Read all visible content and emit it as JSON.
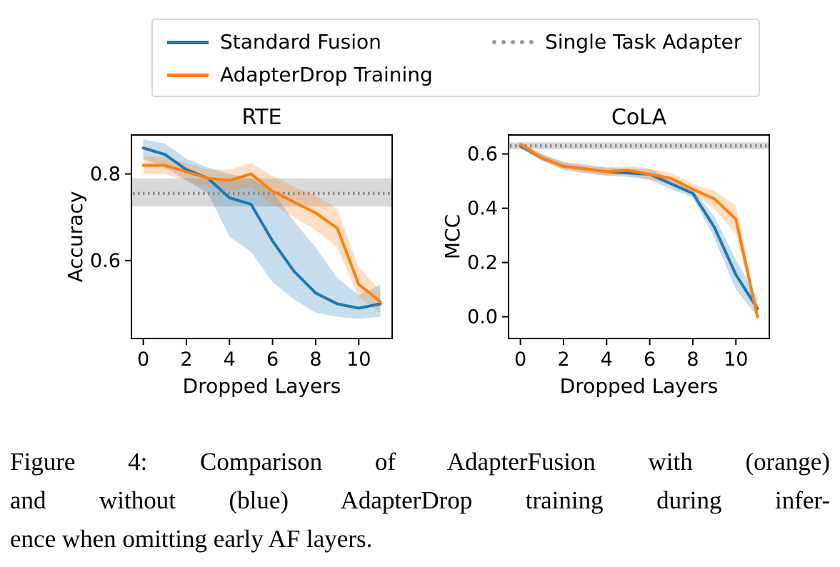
{
  "figure": {
    "legend": {
      "items": [
        {
          "label": "Standard Fusion",
          "color": "#1f77b4",
          "style": "solid"
        },
        {
          "label": "AdapterDrop Training",
          "color": "#ff7f0e",
          "style": "solid"
        },
        {
          "label": "Single Task Adapter",
          "color": "#999999",
          "style": "dotted"
        }
      ]
    },
    "caption": {
      "lines": [
        "Figure 4: Comparison of AdapterFusion with (orange)",
        "and without (blue) AdapterDrop training during infer-",
        "ence when omitting early AF layers."
      ]
    }
  },
  "chart_data": [
    {
      "type": "line",
      "title": "RTE",
      "xlabel": "Dropped Layers",
      "ylabel": "Accuracy",
      "x": [
        0,
        1,
        2,
        3,
        4,
        5,
        6,
        7,
        8,
        9,
        10,
        11
      ],
      "xlim": [
        -0.55,
        11.55
      ],
      "ylim": [
        0.42,
        0.89
      ],
      "xticks": [
        0,
        2,
        4,
        6,
        8,
        10
      ],
      "yticks": [
        0.6,
        0.8
      ],
      "ytick_labels": [
        "0.6",
        "0.8"
      ],
      "grid": false,
      "baseline": {
        "name": "Single Task Adapter",
        "value": 0.755,
        "band": [
          0.725,
          0.79
        ],
        "color": "#8a8a8a",
        "band_color": "#aaaaaa"
      },
      "series": [
        {
          "name": "Standard Fusion",
          "color": "#1f77b4",
          "values": [
            0.86,
            0.845,
            0.81,
            0.79,
            0.745,
            0.73,
            0.645,
            0.575,
            0.525,
            0.5,
            0.49,
            0.5
          ],
          "lower": [
            0.835,
            0.815,
            0.785,
            0.755,
            0.655,
            0.62,
            0.55,
            0.51,
            0.48,
            0.47,
            0.465,
            0.47
          ],
          "upper": [
            0.88,
            0.87,
            0.835,
            0.815,
            0.8,
            0.79,
            0.76,
            0.69,
            0.63,
            0.56,
            0.52,
            0.545
          ]
        },
        {
          "name": "AdapterDrop Training",
          "color": "#ff7f0e",
          "values": [
            0.82,
            0.82,
            0.805,
            0.79,
            0.785,
            0.8,
            0.76,
            0.735,
            0.71,
            0.675,
            0.545,
            0.505
          ],
          "lower": [
            0.8,
            0.8,
            0.785,
            0.77,
            0.76,
            0.77,
            0.73,
            0.7,
            0.67,
            0.63,
            0.515,
            0.48
          ],
          "upper": [
            0.84,
            0.84,
            0.825,
            0.81,
            0.81,
            0.825,
            0.795,
            0.77,
            0.75,
            0.72,
            0.585,
            0.53
          ]
        }
      ]
    },
    {
      "type": "line",
      "title": "CoLA",
      "xlabel": "Dropped Layers",
      "ylabel": "MCC",
      "x": [
        0,
        1,
        2,
        3,
        4,
        5,
        6,
        7,
        8,
        9,
        10,
        11
      ],
      "xlim": [
        -0.55,
        11.55
      ],
      "ylim": [
        -0.08,
        0.67
      ],
      "xticks": [
        0,
        2,
        4,
        6,
        8,
        10
      ],
      "yticks": [
        0.0,
        0.2,
        0.4,
        0.6
      ],
      "ytick_labels": [
        "0.0",
        "0.2",
        "0.4",
        "0.6"
      ],
      "grid": false,
      "baseline": {
        "name": "Single Task Adapter",
        "value": 0.63,
        "band": [
          0.617,
          0.643
        ],
        "color": "#8a8a8a",
        "band_color": "#aaaaaa"
      },
      "series": [
        {
          "name": "Standard Fusion",
          "color": "#1f77b4",
          "values": [
            0.63,
            0.585,
            0.555,
            0.545,
            0.535,
            0.53,
            0.525,
            0.49,
            0.455,
            0.33,
            0.155,
            0.03
          ],
          "lower": [
            0.62,
            0.575,
            0.54,
            0.53,
            0.52,
            0.515,
            0.505,
            0.47,
            0.44,
            0.29,
            0.1,
            0.0
          ],
          "upper": [
            0.64,
            0.6,
            0.57,
            0.56,
            0.55,
            0.545,
            0.545,
            0.51,
            0.47,
            0.37,
            0.21,
            0.07
          ]
        },
        {
          "name": "AdapterDrop Training",
          "color": "#ff7f0e",
          "values": [
            0.635,
            0.585,
            0.555,
            0.545,
            0.535,
            0.54,
            0.525,
            0.51,
            0.47,
            0.435,
            0.36,
            0.0
          ],
          "lower": [
            0.625,
            0.575,
            0.545,
            0.53,
            0.52,
            0.525,
            0.505,
            0.49,
            0.45,
            0.4,
            0.305,
            -0.01
          ],
          "upper": [
            0.645,
            0.6,
            0.57,
            0.56,
            0.55,
            0.555,
            0.545,
            0.53,
            0.49,
            0.465,
            0.41,
            0.015
          ]
        }
      ]
    }
  ]
}
